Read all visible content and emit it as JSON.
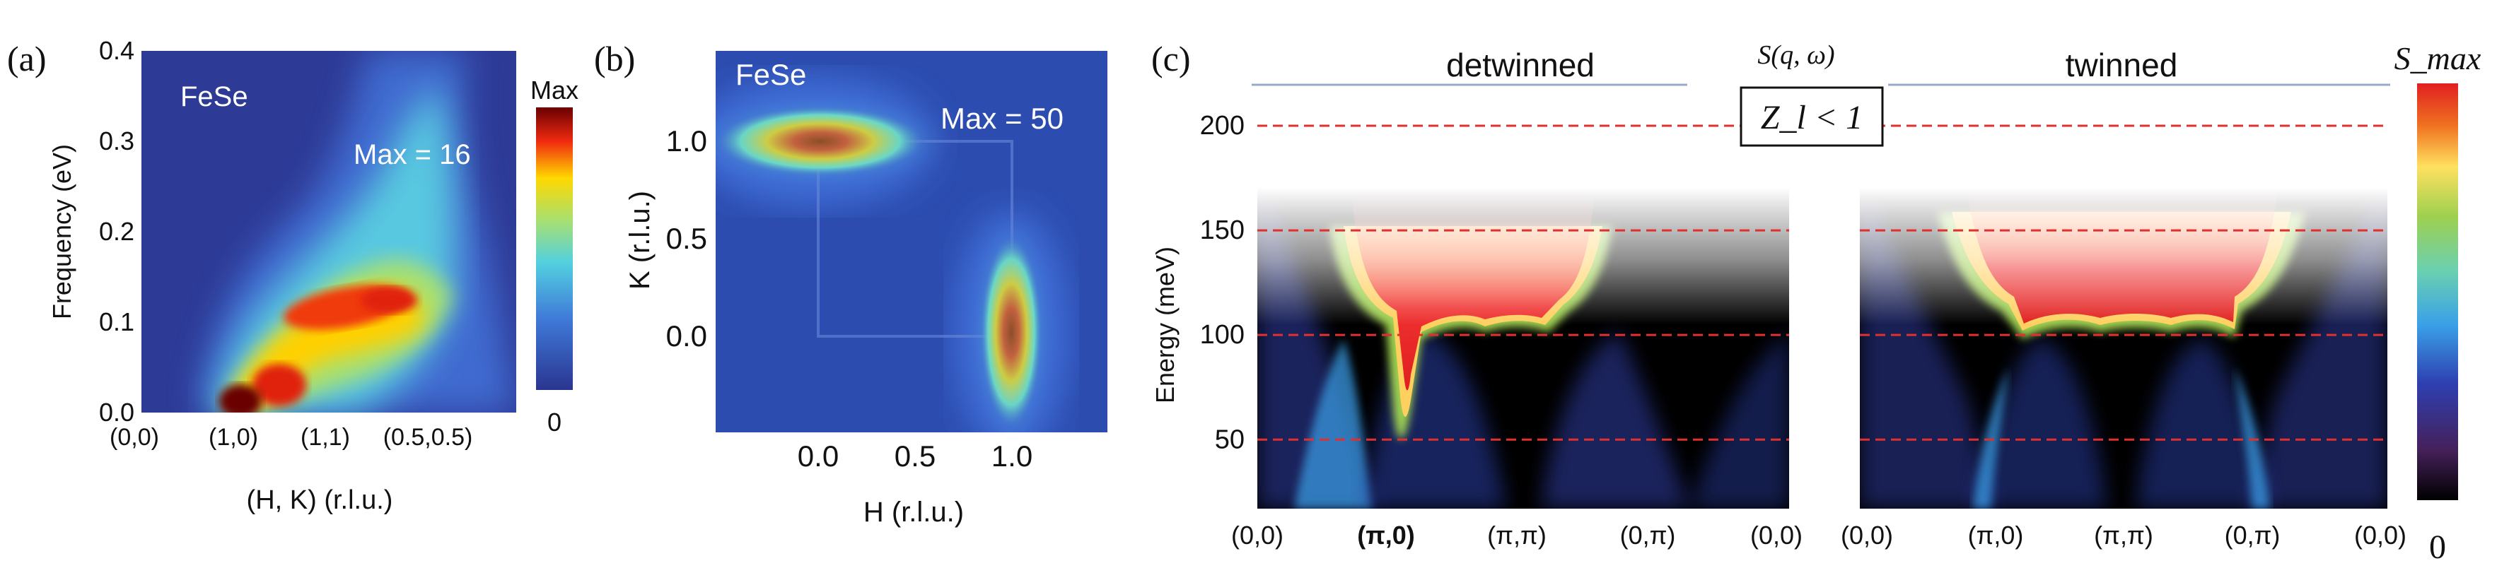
{
  "panels": {
    "a": {
      "letter": "(a)",
      "material": "FeSe",
      "max_label": "Max = 16",
      "colorbar_top": "Max",
      "colorbar_bottom": "0"
    },
    "b": {
      "letter": "(b)",
      "material": "FeSe",
      "max_label": "Max = 50"
    },
    "c": {
      "letter": "(c)",
      "title_left": "detwinned",
      "title_mid": "S(q, ω)",
      "title_right": "twinned",
      "zl_box": "Z_l < 1",
      "colorbar_top": "S_max",
      "colorbar_bottom": "0"
    }
  },
  "chart_data": [
    {
      "type": "heatmap",
      "panel": "a",
      "xlabel": "(H, K) (r.l.u.)",
      "ylabel": "Frequency (eV)",
      "x_ticks": [
        "(0,0)",
        "(1,0)",
        "(1,1)",
        "(0.5,0.5)"
      ],
      "y_ticks": [
        "0.0",
        "0.1",
        "0.2",
        "0.3",
        "0.4"
      ],
      "ylim": [
        0,
        0.4
      ],
      "max_value": 16,
      "colorbar": "Max to 0"
    },
    {
      "type": "heatmap",
      "panel": "b",
      "xlabel": "H (r.l.u.)",
      "ylabel": "K (r.l.u.)",
      "x_ticks": [
        "0.0",
        "0.5",
        "1.0"
      ],
      "y_ticks": [
        "0.0",
        "0.5",
        "1.0"
      ],
      "max_value": 50,
      "peaks": [
        {
          "H": 0.0,
          "K": 1.0
        },
        {
          "H": 1.0,
          "K": 0.0
        }
      ]
    },
    {
      "type": "heatmap",
      "panel": "c",
      "ylabel": "Energy (meV)",
      "y_ticks": [
        "50",
        "100",
        "150",
        "200"
      ],
      "dashed_levels": [
        50,
        100,
        150,
        200
      ],
      "x_ticks_left": [
        "(0,0)",
        "(π,0)",
        "(π,π)",
        "(0,π)",
        "(0,0)"
      ],
      "x_ticks_right": [
        "(0,0)",
        "(π,0)",
        "(π,π)",
        "(0,π)",
        "(0,0)"
      ]
    }
  ]
}
